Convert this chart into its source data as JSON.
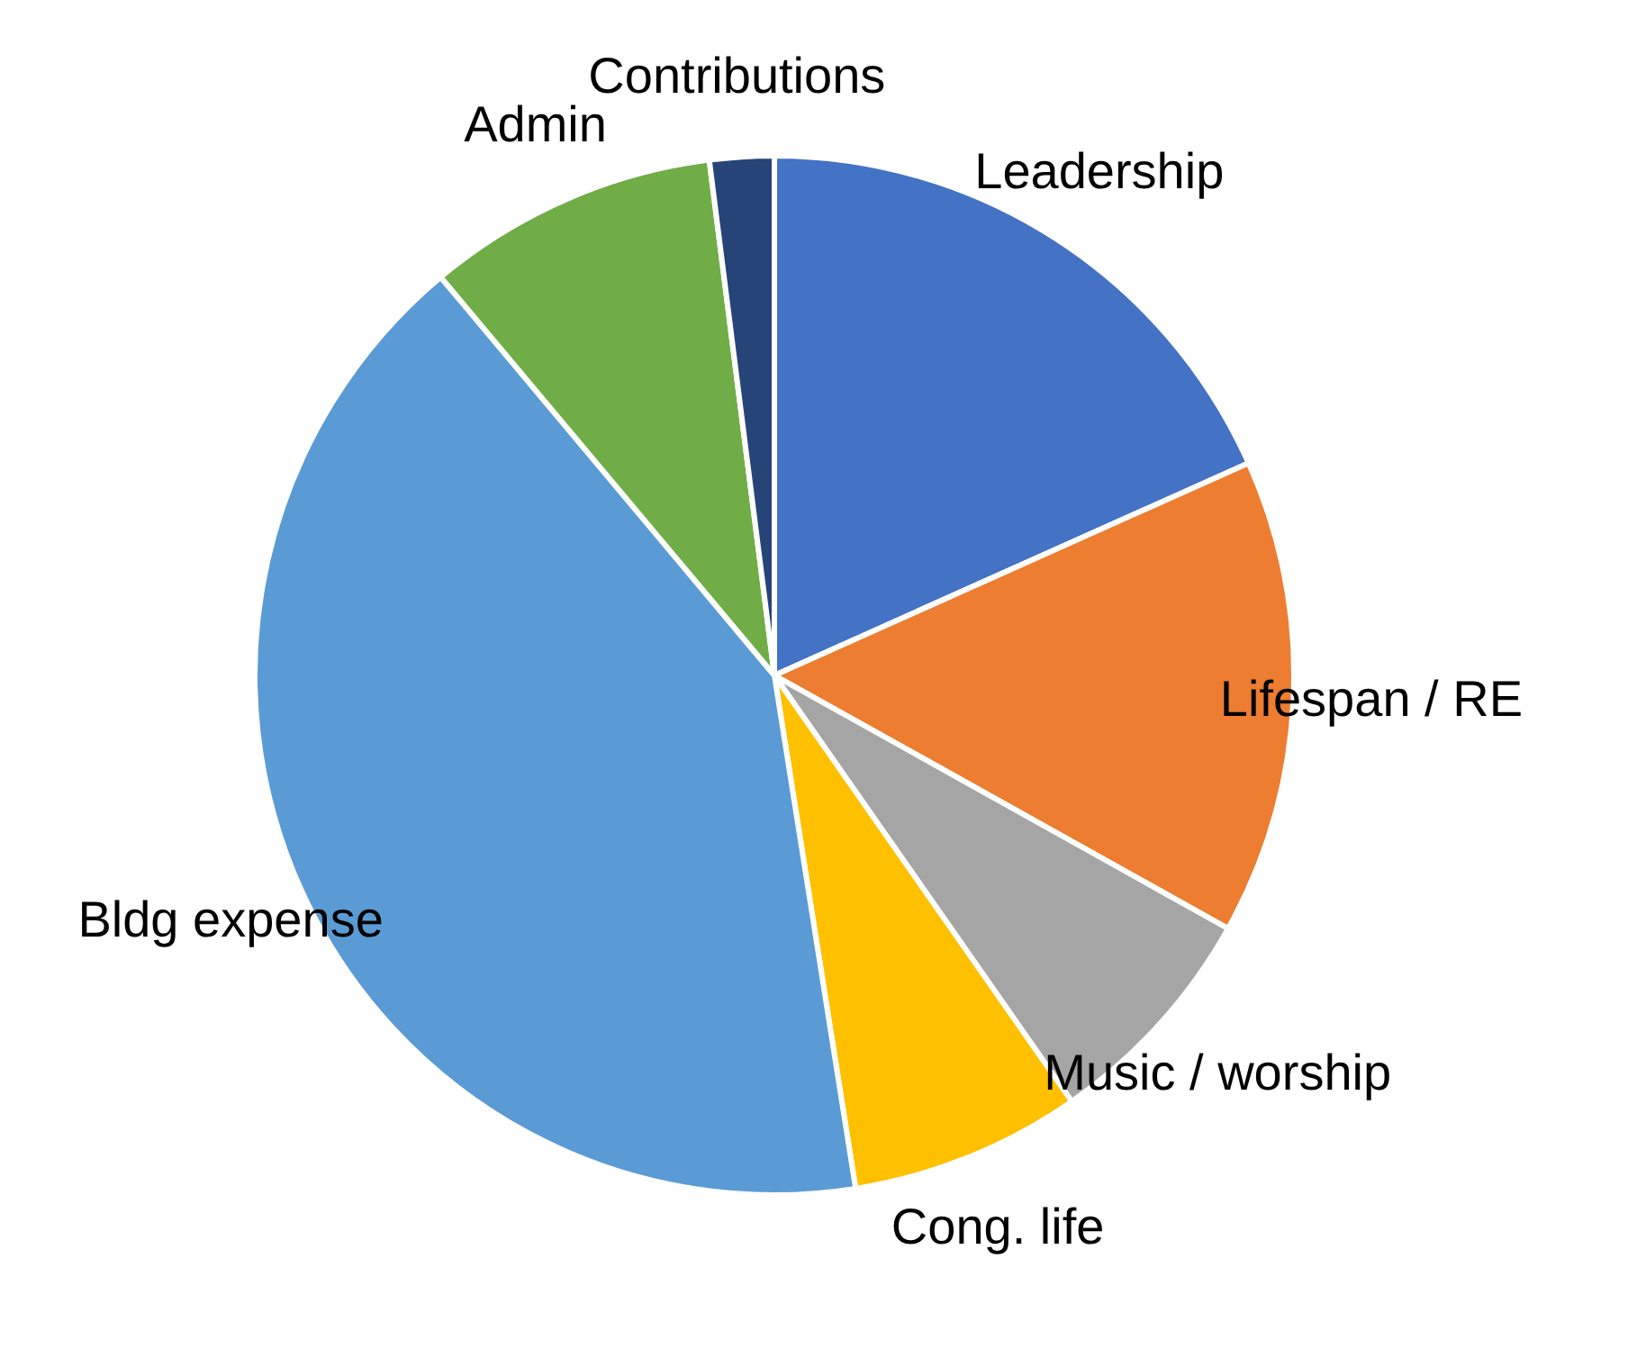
{
  "chart_data": {
    "type": "pie",
    "categories": [
      "Leadership",
      "Lifespan / RE",
      "Music / worship",
      "Cong. life",
      "Bldg expense",
      "Admin",
      "Contributions"
    ],
    "values": [
      18.3,
      14.8,
      7.2,
      7.2,
      41.4,
      9.1,
      2.0
    ],
    "colors": [
      "#4472c4",
      "#ed7d31",
      "#a5a5a5",
      "#ffc000",
      "#5b9bd5",
      "#70ad47",
      "#264478"
    ],
    "legend": false
  }
}
